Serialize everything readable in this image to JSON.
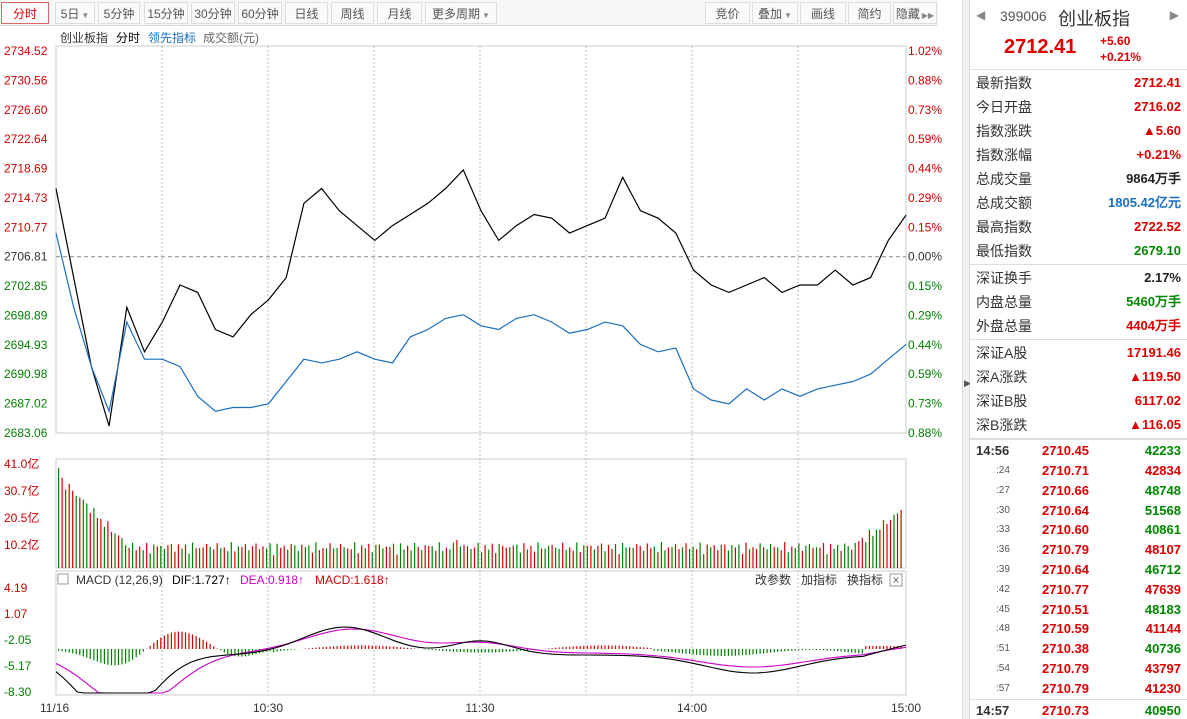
{
  "toolbar": {
    "left": [
      "分时",
      "5日",
      "5分钟",
      "15分钟",
      "30分钟",
      "60分钟",
      "日线",
      "周线",
      "月线",
      "更多周期"
    ],
    "right": [
      "竞价",
      "叠加",
      "画线",
      "简约",
      "隐藏"
    ]
  },
  "legend": {
    "name": "创业板指",
    "mode": "分时",
    "lead": "领先指标",
    "vol": "成交额(元)"
  },
  "price_axis": {
    "left": [
      "2734.52",
      "2730.56",
      "2726.60",
      "2722.64",
      "2718.69",
      "2714.73",
      "2710.77",
      "2706.81",
      "2702.85",
      "2698.89",
      "2694.93",
      "2690.98",
      "2687.02",
      "2683.06"
    ],
    "right": [
      "1.02%",
      "0.88%",
      "0.73%",
      "0.59%",
      "0.44%",
      "0.29%",
      "0.15%",
      "0.00%",
      "0.15%",
      "0.29%",
      "0.44%",
      "0.59%",
      "0.73%",
      "0.88%"
    ]
  },
  "volume_axis": [
    "41.0亿",
    "30.7亿",
    "20.5亿",
    "10.2亿"
  ],
  "macd": {
    "label": "MACD (12,26,9)",
    "dif": "DIF:1.727↑",
    "dea": "DEA:0.918↑",
    "macd": "MACD:1.618↑",
    "actions": [
      "改参数",
      "加指标",
      "换指标"
    ],
    "axis": [
      "4.19",
      "1.07",
      "-2.05",
      "-5.17",
      "-8.30"
    ]
  },
  "time_axis": [
    "11/16",
    "10:30",
    "11:30",
    "14:00",
    "15:00"
  ],
  "colors": {
    "up": "#d00000",
    "down": "#008000",
    "line": "#000000",
    "lead": "#1a6fc0",
    "dea": "#cc00cc"
  },
  "chart_data": {
    "type": "line",
    "x": [
      "09:30",
      "09:35",
      "09:40",
      "09:45",
      "09:50",
      "09:55",
      "10:00",
      "10:05",
      "10:10",
      "10:15",
      "10:20",
      "10:25",
      "10:30",
      "10:35",
      "10:40",
      "10:45",
      "10:50",
      "10:55",
      "11:00",
      "11:05",
      "11:10",
      "11:15",
      "11:20",
      "11:25",
      "11:30",
      "13:05",
      "13:10",
      "13:15",
      "13:20",
      "13:25",
      "13:30",
      "13:35",
      "13:40",
      "13:45",
      "13:50",
      "13:55",
      "14:00",
      "14:05",
      "14:10",
      "14:15",
      "14:20",
      "14:25",
      "14:30",
      "14:35",
      "14:40",
      "14:45",
      "14:50",
      "14:55",
      "15:00"
    ],
    "series": [
      {
        "values": [
          2716.0,
          2704.0,
          2692.0,
          2684.0,
          2700.0,
          2694.0,
          2698.0,
          2703.0,
          2702.0,
          2697.0,
          2696.0,
          2699.0,
          2701.0,
          2704.0,
          2714.0,
          2716.0,
          2713.0,
          2711.0,
          2709.0,
          2711.0,
          2712.5,
          2714.0,
          2716.0,
          2718.5,
          2713.0,
          2709.0,
          2711.0,
          2712.5,
          2712.0,
          2710.0,
          2711.0,
          2712.0,
          2717.5,
          2713.0,
          2712.0,
          2710.0,
          2705.0,
          2703.0,
          2702.0,
          2703.0,
          2704.0,
          2702.0,
          2703.0,
          2703.0,
          2705.0,
          2703.0,
          2704.0,
          2709.0,
          2712.4
        ]
      },
      {
        "values": [
          2710.0,
          2700.0,
          2692.0,
          2686.0,
          2698.0,
          2693.0,
          2693.0,
          2692.0,
          2688.0,
          2686.0,
          2686.5,
          2686.5,
          2687.0,
          2690.0,
          2693.0,
          2692.5,
          2693.0,
          2694.0,
          2693.0,
          2692.5,
          2696.0,
          2697.0,
          2698.5,
          2699.0,
          2697.5,
          2697.0,
          2698.5,
          2699.0,
          2698.0,
          2696.5,
          2697.0,
          2698.0,
          2697.5,
          2695.0,
          2694.0,
          2694.5,
          2689.0,
          2687.5,
          2687.0,
          2689.0,
          2687.5,
          2689.0,
          2688.0,
          2689.0,
          2689.5,
          2690.0,
          2691.0,
          2693.0,
          2695.0
        ]
      }
    ],
    "ylim": [
      2683.06,
      2734.52
    ]
  },
  "quote": {
    "code": "399006",
    "name": "创业板指",
    "price": "2712.41",
    "change": "+5.60",
    "change_pct": "+0.21%",
    "rows1": [
      {
        "label": "最新指数",
        "value": "2712.41",
        "color": "red"
      },
      {
        "label": "今日开盘",
        "value": "2716.02",
        "color": "red"
      },
      {
        "label": "指数涨跌",
        "value": "▲5.60",
        "color": "red"
      },
      {
        "label": "指数涨幅",
        "value": "+0.21%",
        "color": "red"
      },
      {
        "label": "总成交量",
        "value": "9864万手",
        "color": "black"
      },
      {
        "label": "总成交额",
        "value": "1805.42亿元",
        "color": "blue"
      },
      {
        "label": "最高指数",
        "value": "2722.52",
        "color": "red"
      },
      {
        "label": "最低指数",
        "value": "2679.10",
        "color": "green"
      }
    ],
    "rows2": [
      {
        "label": "深证换手",
        "value": "2.17%",
        "color": "black"
      },
      {
        "label": "内盘总量",
        "value": "5460万手",
        "color": "green"
      },
      {
        "label": "外盘总量",
        "value": "4404万手",
        "color": "red"
      }
    ],
    "rows3": [
      {
        "label": "深证A股",
        "value": "17191.46",
        "color": "red"
      },
      {
        "label": "深A涨跌",
        "value": "▲119.50",
        "color": "red"
      },
      {
        "label": "深证B股",
        "value": "6117.02",
        "color": "red"
      },
      {
        "label": "深B涨跌",
        "value": "▲116.05",
        "color": "red"
      }
    ],
    "ticks": [
      {
        "time": "14:56",
        "price": "2710.45",
        "vol": "42233",
        "color": "green",
        "big": true
      },
      {
        "time": ":24",
        "price": "2710.71",
        "vol": "42834",
        "color": "red"
      },
      {
        "time": ":27",
        "price": "2710.66",
        "vol": "48748",
        "color": "green"
      },
      {
        "time": ":30",
        "price": "2710.64",
        "vol": "51568",
        "color": "green"
      },
      {
        "time": ":33",
        "price": "2710.60",
        "vol": "40861",
        "color": "green"
      },
      {
        "time": ":36",
        "price": "2710.79",
        "vol": "48107",
        "color": "red"
      },
      {
        "time": ":39",
        "price": "2710.64",
        "vol": "46712",
        "color": "green"
      },
      {
        "time": ":42",
        "price": "2710.77",
        "vol": "47639",
        "color": "red"
      },
      {
        "time": ":45",
        "price": "2710.51",
        "vol": "48183",
        "color": "green"
      },
      {
        "time": ":48",
        "price": "2710.59",
        "vol": "41144",
        "color": "red"
      },
      {
        "time": ":51",
        "price": "2710.38",
        "vol": "40736",
        "color": "green"
      },
      {
        "time": ":54",
        "price": "2710.79",
        "vol": "43797",
        "color": "red"
      },
      {
        "time": ":57",
        "price": "2710.79",
        "vol": "41230",
        "color": "red"
      },
      {
        "time": "14:57",
        "price": "2710.73",
        "vol": "40950",
        "color": "green",
        "big": true
      }
    ]
  }
}
